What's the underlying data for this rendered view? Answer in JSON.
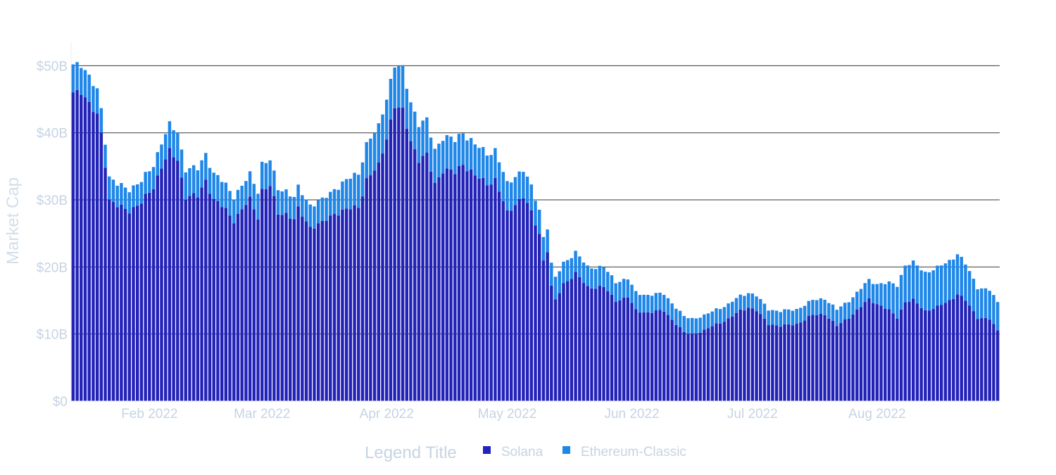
{
  "chart_data": {
    "type": "bar",
    "barmode": "stack",
    "title": "",
    "xlabel": "",
    "ylabel": "Market Cap",
    "ylim": [
      0,
      53.5
    ],
    "y_unit": "B",
    "y_ticks": [
      {
        "value": 0,
        "label": "$0"
      },
      {
        "value": 10,
        "label": "$10B"
      },
      {
        "value": 20,
        "label": "$20B"
      },
      {
        "value": 30,
        "label": "$30B"
      },
      {
        "value": 40,
        "label": "$40B"
      },
      {
        "value": 50,
        "label": "$50B"
      }
    ],
    "x_start": "2022-01-13",
    "x_end": "2022-08-31",
    "x_ticks": [
      {
        "date": "2022-02-01",
        "label": "Feb 2022"
      },
      {
        "date": "2022-03-01",
        "label": "Mar 2022"
      },
      {
        "date": "2022-04-01",
        "label": "Apr 2022"
      },
      {
        "date": "2022-05-01",
        "label": "May 2022"
      },
      {
        "date": "2022-06-01",
        "label": "Jun 2022"
      },
      {
        "date": "2022-07-01",
        "label": "Jul 2022"
      },
      {
        "date": "2022-08-01",
        "label": "Aug 2022"
      }
    ],
    "grid": "horizontal",
    "legend": {
      "title": "Legend Title",
      "placement": "bottom-center"
    },
    "series": [
      {
        "name": "Solana",
        "color": "#2323b9",
        "keypoints": [
          [
            "2022-01-13",
            46
          ],
          [
            "2022-01-15",
            46.5
          ],
          [
            "2022-01-17",
            44
          ],
          [
            "2022-01-19",
            42.5
          ],
          [
            "2022-01-20",
            40
          ],
          [
            "2022-01-21",
            35.5
          ],
          [
            "2022-01-22",
            30
          ],
          [
            "2022-01-24",
            29
          ],
          [
            "2022-01-27",
            28.5
          ],
          [
            "2022-01-30",
            29.5
          ],
          [
            "2022-02-02",
            32
          ],
          [
            "2022-02-04",
            35
          ],
          [
            "2022-02-06",
            37
          ],
          [
            "2022-02-08",
            36
          ],
          [
            "2022-02-10",
            30.5
          ],
          [
            "2022-02-13",
            30.5
          ],
          [
            "2022-02-15",
            33
          ],
          [
            "2022-02-17",
            30
          ],
          [
            "2022-02-20",
            28.5
          ],
          [
            "2022-02-22",
            27
          ],
          [
            "2022-02-24",
            28.5
          ],
          [
            "2022-02-26",
            30
          ],
          [
            "2022-02-28",
            27.5
          ],
          [
            "2022-03-01",
            31.5
          ],
          [
            "2022-03-03",
            32
          ],
          [
            "2022-03-05",
            28
          ],
          [
            "2022-03-07",
            28
          ],
          [
            "2022-03-09",
            27
          ],
          [
            "2022-03-10",
            28.5
          ],
          [
            "2022-03-13",
            26
          ],
          [
            "2022-03-16",
            26.5
          ],
          [
            "2022-03-19",
            28
          ],
          [
            "2022-03-22",
            28.5
          ],
          [
            "2022-03-25",
            29
          ],
          [
            "2022-03-27",
            33
          ],
          [
            "2022-03-30",
            35
          ],
          [
            "2022-04-01",
            39.5
          ],
          [
            "2022-04-03",
            44
          ],
          [
            "2022-04-05",
            43
          ],
          [
            "2022-04-07",
            39
          ],
          [
            "2022-04-09",
            36
          ],
          [
            "2022-04-11",
            36.5
          ],
          [
            "2022-04-13",
            32.5
          ],
          [
            "2022-04-15",
            34.5
          ],
          [
            "2022-04-18",
            34
          ],
          [
            "2022-04-20",
            35.5
          ],
          [
            "2022-04-23",
            33.5
          ],
          [
            "2022-04-26",
            32.5
          ],
          [
            "2022-04-28",
            33
          ],
          [
            "2022-05-01",
            28
          ],
          [
            "2022-05-03",
            29.5
          ],
          [
            "2022-05-05",
            30.5
          ],
          [
            "2022-05-07",
            28
          ],
          [
            "2022-05-09",
            25
          ],
          [
            "2022-05-10",
            21
          ],
          [
            "2022-05-11",
            22.5
          ],
          [
            "2022-05-12",
            17
          ],
          [
            "2022-05-13",
            15
          ],
          [
            "2022-05-15",
            17.5
          ],
          [
            "2022-05-18",
            19
          ],
          [
            "2022-05-21",
            17
          ],
          [
            "2022-05-25",
            17
          ],
          [
            "2022-05-28",
            15
          ],
          [
            "2022-05-31",
            15.5
          ],
          [
            "2022-06-02",
            13.5
          ],
          [
            "2022-06-05",
            13.2
          ],
          [
            "2022-06-09",
            13.5
          ],
          [
            "2022-06-12",
            11.5
          ],
          [
            "2022-06-14",
            10.2
          ],
          [
            "2022-06-16",
            10
          ],
          [
            "2022-06-19",
            10.5
          ],
          [
            "2022-06-22",
            11.5
          ],
          [
            "2022-06-25",
            12.2
          ],
          [
            "2022-06-28",
            13.5
          ],
          [
            "2022-06-30",
            14
          ],
          [
            "2022-07-02",
            13.5
          ],
          [
            "2022-07-05",
            11.5
          ],
          [
            "2022-07-08",
            11.2
          ],
          [
            "2022-07-12",
            11.5
          ],
          [
            "2022-07-16",
            12.8
          ],
          [
            "2022-07-19",
            13
          ],
          [
            "2022-07-22",
            11.2
          ],
          [
            "2022-07-25",
            12.5
          ],
          [
            "2022-07-27",
            13.5
          ],
          [
            "2022-07-30",
            15.2
          ],
          [
            "2022-08-01",
            14.5
          ],
          [
            "2022-08-04",
            13.5
          ],
          [
            "2022-08-06",
            12.5
          ],
          [
            "2022-08-08",
            14.8
          ],
          [
            "2022-08-10",
            15
          ],
          [
            "2022-08-13",
            13.5
          ],
          [
            "2022-08-16",
            14
          ],
          [
            "2022-08-19",
            15
          ],
          [
            "2022-08-21",
            16
          ],
          [
            "2022-08-23",
            15
          ],
          [
            "2022-08-26",
            12.5
          ],
          [
            "2022-08-29",
            12.2
          ],
          [
            "2022-08-31",
            10.5
          ]
        ]
      },
      {
        "name": "Ethereum-Classic",
        "color": "#1f87e8",
        "keypoints": [
          [
            "2022-01-13",
            4.2
          ],
          [
            "2022-01-17",
            4
          ],
          [
            "2022-01-21",
            3.5
          ],
          [
            "2022-01-24",
            3.2
          ],
          [
            "2022-02-01",
            3.2
          ],
          [
            "2022-02-08",
            4.2
          ],
          [
            "2022-02-15",
            4
          ],
          [
            "2022-02-24",
            3.5
          ],
          [
            "2022-03-01",
            4
          ],
          [
            "2022-03-10",
            3.2
          ],
          [
            "2022-03-18",
            3.5
          ],
          [
            "2022-03-26",
            5.2
          ],
          [
            "2022-04-01",
            6
          ],
          [
            "2022-04-05",
            6.2
          ],
          [
            "2022-04-10",
            5.2
          ],
          [
            "2022-04-18",
            4.8
          ],
          [
            "2022-04-26",
            4.5
          ],
          [
            "2022-05-03",
            4.2
          ],
          [
            "2022-05-10",
            3.5
          ],
          [
            "2022-05-15",
            3.2
          ],
          [
            "2022-05-22",
            3
          ],
          [
            "2022-06-01",
            2.7
          ],
          [
            "2022-06-10",
            2.5
          ],
          [
            "2022-06-20",
            2.2
          ],
          [
            "2022-07-01",
            2.2
          ],
          [
            "2022-07-15",
            2.2
          ],
          [
            "2022-07-25",
            2.5
          ],
          [
            "2022-08-01",
            3
          ],
          [
            "2022-08-08",
            5.5
          ],
          [
            "2022-08-15",
            5.8
          ],
          [
            "2022-08-21",
            6
          ],
          [
            "2022-08-26",
            4.5
          ],
          [
            "2022-08-31",
            4.2
          ]
        ]
      }
    ]
  }
}
